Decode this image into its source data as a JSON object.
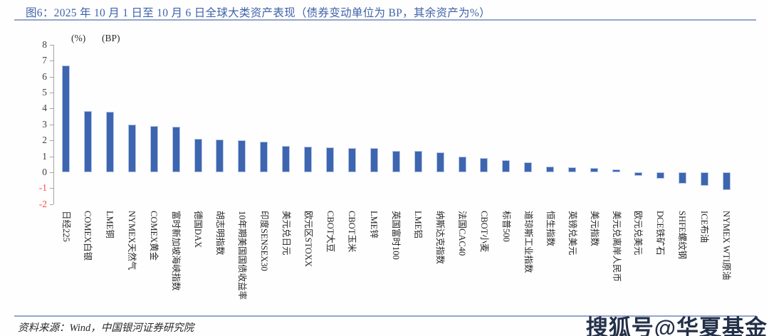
{
  "figure": {
    "title": "图6：2025 年 10 月 1 日至 10 月 6 日全球大类资产表现（债券变动单位为 BP，其余资产为%）",
    "source": "资料来源：Wind，中国银河证券研究院",
    "watermark": "搜狐号@华夏基金"
  },
  "chart_data": {
    "type": "bar",
    "title": "2025年10月1日至10月6日全球大类资产表现",
    "unit_labels": [
      "(%)",
      "(BP)"
    ],
    "categories": [
      "日经225",
      "COMEX白银",
      "LME铜",
      "NYMEX天然气",
      "COMEX黄金",
      "富时新加坡海峡指数",
      "德国DAX",
      "胡志明指数",
      "10年期美国国债收益率",
      "印度SENSEX30",
      "美元兑日元",
      "欧元区STOXX",
      "CBOT大豆",
      "CBOT玉米",
      "LME锌",
      "英国富时100",
      "LME铝",
      "纳斯达克指数",
      "法国CAC40",
      "CBOT小麦",
      "标普500",
      "道琼斯工业指数",
      "恒生指数",
      "英镑兑美元",
      "美元指数",
      "美元兑离岸人民币",
      "欧元兑美元",
      "DCE铁矿石",
      "SHFE螺纹钢",
      "ICE布油",
      "NYMEX WTI原油"
    ],
    "values": [
      6.7,
      3.85,
      3.8,
      3.0,
      2.9,
      2.85,
      2.1,
      2.05,
      2.0,
      1.9,
      1.65,
      1.6,
      1.55,
      1.5,
      1.5,
      1.36,
      1.33,
      1.24,
      1.0,
      0.9,
      0.76,
      0.64,
      0.37,
      0.31,
      0.27,
      0.18,
      -0.22,
      -0.4,
      -0.7,
      -0.85,
      -1.1
    ],
    "ylim": [
      -2,
      8
    ],
    "ytick_step": 1,
    "grid": false,
    "legend": null,
    "bar_color": "#3d65b0",
    "bar_border_color": "#b6c7e6",
    "tick_label_color": "#3f3f3f",
    "negative_tick_label_color": "#fb4a4a"
  }
}
